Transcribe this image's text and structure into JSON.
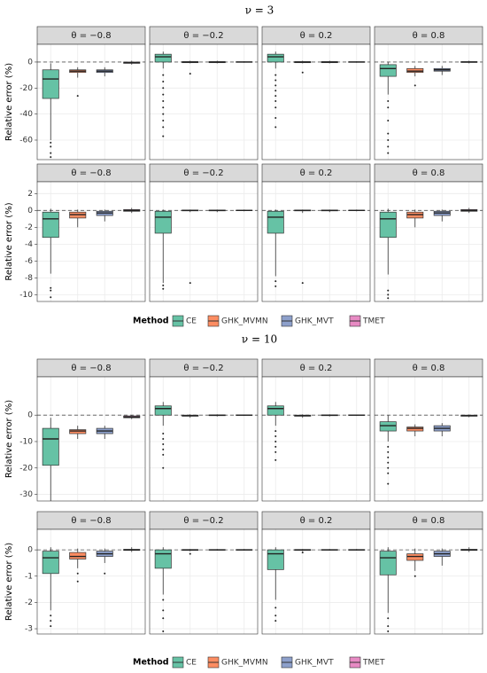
{
  "sections": [
    {
      "title": "ν = 3",
      "legend_title": "Method",
      "legend": [
        {
          "name": "CE",
          "color": "#66c2a5"
        },
        {
          "name": "GHK_MVMN",
          "color": "#fc8d62"
        },
        {
          "name": "GHK_MVT",
          "color": "#8da0cb"
        },
        {
          "name": "TMET",
          "color": "#e78ac3"
        }
      ]
    },
    {
      "title": "ν = 10",
      "legend_title": "Method",
      "legend": [
        {
          "name": "CE",
          "color": "#66c2a5"
        },
        {
          "name": "GHK_MVMN",
          "color": "#fc8d62"
        },
        {
          "name": "GHK_MVT",
          "color": "#8da0cb"
        },
        {
          "name": "TMET",
          "color": "#e78ac3"
        }
      ]
    }
  ],
  "chart_data": [
    {
      "type": "box",
      "title": "θ = −0.8",
      "ylabel": "Relative error (%)",
      "ylim": [
        -75,
        13.6
      ],
      "yticks": [
        0,
        -20,
        -40,
        -60
      ],
      "hline": 0,
      "grid": true,
      "boxes": [
        {
          "low": -60,
          "q1": -28,
          "median": -13,
          "q3": -6,
          "high": -1,
          "outliers": [
            -62,
            -65,
            -70,
            -73
          ]
        },
        {
          "low": -12,
          "q1": -8,
          "median": -7,
          "q3": -6,
          "high": -4,
          "outliers": [
            -26
          ]
        },
        {
          "low": -11,
          "q1": -8,
          "median": -7,
          "q3": -6,
          "high": -4,
          "outliers": []
        },
        {
          "low": -2,
          "q1": -1,
          "median": -0.5,
          "q3": 0,
          "high": 1,
          "outliers": []
        }
      ]
    },
    {
      "type": "box",
      "title": "θ = −0.2",
      "ylim": [
        -75,
        13.6
      ],
      "yticks": [
        0,
        -20,
        -40,
        -60
      ],
      "hline": 0,
      "grid": true,
      "boxes": [
        {
          "low": -5,
          "q1": 0,
          "median": 4,
          "q3": 6,
          "high": 8,
          "outliers": [
            -10,
            -15,
            -20,
            -25,
            -30,
            -35,
            -40,
            -45,
            -50,
            -57
          ]
        },
        {
          "low": -1,
          "q1": -0.5,
          "median": 0,
          "q3": 0.3,
          "high": 1,
          "outliers": [
            -9
          ]
        },
        {
          "low": -1,
          "q1": -0.5,
          "median": 0,
          "q3": 0.3,
          "high": 1,
          "outliers": []
        },
        {
          "low": -0.5,
          "q1": -0.2,
          "median": 0,
          "q3": 0.2,
          "high": 0.5,
          "outliers": []
        }
      ]
    },
    {
      "type": "box",
      "title": "θ = 0.2",
      "ylim": [
        -75,
        13.6
      ],
      "yticks": [
        0,
        -20,
        -40,
        -60
      ],
      "hline": 0,
      "grid": true,
      "boxes": [
        {
          "low": -5,
          "q1": 0,
          "median": 4,
          "q3": 6,
          "high": 8,
          "outliers": [
            -10,
            -14,
            -18,
            -22,
            -26,
            -30,
            -35,
            -43,
            -50
          ]
        },
        {
          "low": -1,
          "q1": -0.5,
          "median": 0,
          "q3": 0.3,
          "high": 1,
          "outliers": [
            -8
          ]
        },
        {
          "low": -1,
          "q1": -0.5,
          "median": 0,
          "q3": 0.3,
          "high": 1,
          "outliers": []
        },
        {
          "low": -0.5,
          "q1": -0.2,
          "median": 0,
          "q3": 0.2,
          "high": 0.5,
          "outliers": []
        }
      ]
    },
    {
      "type": "box",
      "title": "θ = 0.8",
      "ylim": [
        -75,
        13.6
      ],
      "yticks": [
        0,
        -20,
        -40,
        -60
      ],
      "hline": 0,
      "grid": true,
      "boxes": [
        {
          "low": -25,
          "q1": -11,
          "median": -5,
          "q3": -2,
          "high": 0,
          "outliers": [
            -30,
            -35,
            -45,
            -55,
            -60,
            -65,
            -70
          ]
        },
        {
          "low": -11,
          "q1": -8,
          "median": -7,
          "q3": -5,
          "high": -3,
          "outliers": [
            -18
          ]
        },
        {
          "low": -10,
          "q1": -7,
          "median": -6,
          "q3": -5,
          "high": -3,
          "outliers": []
        },
        {
          "low": -1,
          "q1": -0.3,
          "median": 0,
          "q3": 0.3,
          "high": 1,
          "outliers": []
        }
      ]
    },
    {
      "type": "box",
      "title": "θ = −0.8",
      "ylabel": "Relative error (%)",
      "ylim": [
        -10.8,
        3.4
      ],
      "yticks": [
        2,
        0,
        -2,
        -4,
        -6,
        -8,
        -10
      ],
      "hline": 0,
      "grid": true,
      "boxes": [
        {
          "low": -7.5,
          "q1": -3.2,
          "median": -1,
          "q3": -0.2,
          "high": 0.2,
          "outliers": [
            -9.2,
            -9.5,
            -10.3
          ]
        },
        {
          "low": -2,
          "q1": -0.9,
          "median": -0.5,
          "q3": -0.2,
          "high": 0.1,
          "outliers": []
        },
        {
          "low": -1.3,
          "q1": -0.6,
          "median": -0.3,
          "q3": -0.1,
          "high": 0.1,
          "outliers": []
        },
        {
          "low": -0.3,
          "q1": -0.1,
          "median": 0,
          "q3": 0.1,
          "high": 0.3,
          "outliers": []
        }
      ]
    },
    {
      "type": "box",
      "title": "θ = −0.2",
      "ylim": [
        -10.8,
        3.4
      ],
      "yticks": [
        2,
        0,
        -2,
        -4,
        -6,
        -8,
        -10
      ],
      "hline": 0,
      "grid": true,
      "boxes": [
        {
          "low": -8.6,
          "q1": -2.7,
          "median": -0.8,
          "q3": -0.1,
          "high": 0.1,
          "outliers": [
            -8.9,
            -9.3
          ]
        },
        {
          "low": -0.2,
          "q1": -0.05,
          "median": 0,
          "q3": 0.05,
          "high": 0.1,
          "outliers": [
            -8.6
          ]
        },
        {
          "low": -0.2,
          "q1": -0.05,
          "median": 0,
          "q3": 0.05,
          "high": 0.1,
          "outliers": []
        },
        {
          "low": -0.1,
          "q1": -0.02,
          "median": 0,
          "q3": 0.02,
          "high": 0.1,
          "outliers": []
        }
      ]
    },
    {
      "type": "box",
      "title": "θ = 0.2",
      "ylim": [
        -10.8,
        3.4
      ],
      "yticks": [
        2,
        0,
        -2,
        -4,
        -6,
        -8,
        -10
      ],
      "hline": 0,
      "grid": true,
      "boxes": [
        {
          "low": -7.8,
          "q1": -2.7,
          "median": -0.8,
          "q3": -0.1,
          "high": 0.1,
          "outliers": [
            -8.4,
            -9
          ]
        },
        {
          "low": -0.3,
          "q1": -0.05,
          "median": 0,
          "q3": 0.05,
          "high": 0.1,
          "outliers": [
            -8.6
          ]
        },
        {
          "low": -0.2,
          "q1": -0.05,
          "median": 0,
          "q3": 0.05,
          "high": 0.1,
          "outliers": []
        },
        {
          "low": -0.1,
          "q1": -0.02,
          "median": 0,
          "q3": 0.02,
          "high": 0.1,
          "outliers": []
        }
      ]
    },
    {
      "type": "box",
      "title": "θ = 0.8",
      "ylim": [
        -10.8,
        3.4
      ],
      "yticks": [
        2,
        0,
        -2,
        -4,
        -6,
        -8,
        -10
      ],
      "hline": 0,
      "grid": true,
      "boxes": [
        {
          "low": -7.6,
          "q1": -3.2,
          "median": -1,
          "q3": -0.2,
          "high": 0.2,
          "outliers": [
            -9.5,
            -10,
            -10.4
          ]
        },
        {
          "low": -2,
          "q1": -0.9,
          "median": -0.5,
          "q3": -0.2,
          "high": 0.1,
          "outliers": []
        },
        {
          "low": -1.3,
          "q1": -0.6,
          "median": -0.3,
          "q3": -0.1,
          "high": 0.1,
          "outliers": []
        },
        {
          "low": -0.3,
          "q1": -0.1,
          "median": 0,
          "q3": 0.1,
          "high": 0.3,
          "outliers": []
        }
      ]
    },
    {
      "type": "box",
      "title": "θ = −0.8",
      "ylabel": "Relative error (%)",
      "ylim": [
        -32.5,
        14.5
      ],
      "yticks": [
        0,
        -10,
        -20,
        -30
      ],
      "hline": 0,
      "grid": true,
      "boxes": [
        {
          "low": -32.5,
          "q1": -19,
          "median": -9,
          "q3": -5,
          "high": -1,
          "outliers": []
        },
        {
          "low": -9,
          "q1": -7,
          "median": -6,
          "q3": -5.5,
          "high": -4,
          "outliers": []
        },
        {
          "low": -9,
          "q1": -7,
          "median": -6,
          "q3": -5,
          "high": -4,
          "outliers": []
        },
        {
          "low": -1.5,
          "q1": -1,
          "median": -0.7,
          "q3": -0.3,
          "high": 0,
          "outliers": []
        }
      ]
    },
    {
      "type": "box",
      "title": "θ = −0.2",
      "ylim": [
        -32.5,
        14.5
      ],
      "yticks": [
        0,
        -10,
        -20,
        -30
      ],
      "hline": 0,
      "grid": true,
      "boxes": [
        {
          "low": -4,
          "q1": 0,
          "median": 2.5,
          "q3": 3.5,
          "high": 5,
          "outliers": [
            -7,
            -9,
            -11,
            -13,
            -15,
            -20
          ]
        },
        {
          "low": -1,
          "q1": -0.4,
          "median": -0.2,
          "q3": 0,
          "high": 0.3,
          "outliers": []
        },
        {
          "low": -0.5,
          "q1": -0.2,
          "median": 0,
          "q3": 0.1,
          "high": 0.3,
          "outliers": []
        },
        {
          "low": -0.3,
          "q1": -0.1,
          "median": 0,
          "q3": 0.1,
          "high": 0.2,
          "outliers": []
        }
      ]
    },
    {
      "type": "box",
      "title": "θ = 0.2",
      "ylim": [
        -32.5,
        14.5
      ],
      "yticks": [
        0,
        -10,
        -20,
        -30
      ],
      "hline": 0,
      "grid": true,
      "boxes": [
        {
          "low": -4,
          "q1": 0,
          "median": 2.5,
          "q3": 3.5,
          "high": 5,
          "outliers": [
            -6,
            -8,
            -10,
            -12,
            -14,
            -17
          ]
        },
        {
          "low": -1,
          "q1": -0.4,
          "median": -0.2,
          "q3": 0,
          "high": 0.3,
          "outliers": []
        },
        {
          "low": -0.5,
          "q1": -0.2,
          "median": 0,
          "q3": 0.1,
          "high": 0.3,
          "outliers": []
        },
        {
          "low": -0.3,
          "q1": -0.1,
          "median": 0,
          "q3": 0.1,
          "high": 0.2,
          "outliers": []
        }
      ]
    },
    {
      "type": "box",
      "title": "θ = 0.8",
      "ylim": [
        -32.5,
        14.5
      ],
      "yticks": [
        0,
        -10,
        -20,
        -30
      ],
      "hline": 0,
      "grid": true,
      "boxes": [
        {
          "low": -10,
          "q1": -6,
          "median": -4,
          "q3": -2.5,
          "high": 0,
          "outliers": [
            -12,
            -14,
            -16,
            -18,
            -20,
            -22,
            -26
          ]
        },
        {
          "low": -8,
          "q1": -6,
          "median": -5,
          "q3": -4.5,
          "high": -3.5,
          "outliers": []
        },
        {
          "low": -8,
          "q1": -6,
          "median": -5,
          "q3": -4,
          "high": -3,
          "outliers": []
        },
        {
          "low": -0.8,
          "q1": -0.4,
          "median": -0.2,
          "q3": 0,
          "high": 0.2,
          "outliers": []
        }
      ]
    },
    {
      "type": "box",
      "title": "θ = −0.8",
      "ylabel": "Relative error (%)",
      "ylim": [
        -3.2,
        0.78
      ],
      "yticks": [
        0,
        -1,
        -2,
        -3
      ],
      "hline": 0,
      "grid": true,
      "boxes": [
        {
          "low": -2.3,
          "q1": -0.9,
          "median": -0.3,
          "q3": -0.05,
          "high": 0.1,
          "outliers": [
            -2.5,
            -2.7,
            -2.9
          ]
        },
        {
          "low": -0.7,
          "q1": -0.35,
          "median": -0.25,
          "q3": -0.1,
          "high": 0.05,
          "outliers": [
            -0.9,
            -1.2
          ]
        },
        {
          "low": -0.5,
          "q1": -0.25,
          "median": -0.15,
          "q3": -0.05,
          "high": 0.05,
          "outliers": [
            -0.9
          ]
        },
        {
          "low": -0.08,
          "q1": -0.02,
          "median": 0,
          "q3": 0.02,
          "high": 0.1,
          "outliers": []
        }
      ]
    },
    {
      "type": "box",
      "title": "θ = −0.2",
      "ylim": [
        -3.2,
        0.78
      ],
      "yticks": [
        0,
        -1,
        -2,
        -3
      ],
      "hline": 0,
      "grid": true,
      "boxes": [
        {
          "low": -1.7,
          "q1": -0.7,
          "median": -0.15,
          "q3": 0,
          "high": 0.1,
          "outliers": [
            -1.9,
            -2.3,
            -2.6,
            -3.1
          ]
        },
        {
          "low": -0.05,
          "q1": -0.02,
          "median": 0,
          "q3": 0.01,
          "high": 0.03,
          "outliers": [
            -0.15
          ]
        },
        {
          "low": -0.03,
          "q1": -0.01,
          "median": 0,
          "q3": 0.01,
          "high": 0.03,
          "outliers": []
        },
        {
          "low": -0.03,
          "q1": -0.01,
          "median": 0,
          "q3": 0.01,
          "high": 0.03,
          "outliers": []
        }
      ]
    },
    {
      "type": "box",
      "title": "θ = 0.2",
      "ylim": [
        -3.2,
        0.78
      ],
      "yticks": [
        0,
        -1,
        -2,
        -3
      ],
      "hline": 0,
      "grid": true,
      "boxes": [
        {
          "low": -1.9,
          "q1": -0.75,
          "median": -0.15,
          "q3": 0,
          "high": 0.1,
          "outliers": [
            -2.2,
            -2.5,
            -2.7
          ]
        },
        {
          "low": -0.05,
          "q1": -0.02,
          "median": 0,
          "q3": 0.01,
          "high": 0.03,
          "outliers": [
            -0.1
          ]
        },
        {
          "low": -0.03,
          "q1": -0.01,
          "median": 0,
          "q3": 0.01,
          "high": 0.03,
          "outliers": []
        },
        {
          "low": -0.03,
          "q1": -0.01,
          "median": 0,
          "q3": 0.01,
          "high": 0.03,
          "outliers": []
        }
      ]
    },
    {
      "type": "box",
      "title": "θ = 0.8",
      "ylim": [
        -3.2,
        0.78
      ],
      "yticks": [
        0,
        -1,
        -2,
        -3
      ],
      "hline": 0,
      "grid": true,
      "boxes": [
        {
          "low": -2.4,
          "q1": -0.95,
          "median": -0.3,
          "q3": -0.05,
          "high": 0.1,
          "outliers": [
            -2.6,
            -2.9,
            -3.1
          ]
        },
        {
          "low": -0.8,
          "q1": -0.4,
          "median": -0.25,
          "q3": -0.15,
          "high": 0.05,
          "outliers": [
            -1
          ]
        },
        {
          "low": -0.6,
          "q1": -0.25,
          "median": -0.15,
          "q3": -0.05,
          "high": 0.05,
          "outliers": []
        },
        {
          "low": -0.08,
          "q1": -0.02,
          "median": 0,
          "q3": 0.02,
          "high": 0.1,
          "outliers": []
        }
      ]
    }
  ]
}
